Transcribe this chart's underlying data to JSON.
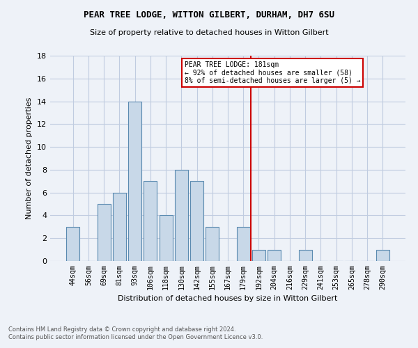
{
  "title1": "PEAR TREE LODGE, WITTON GILBERT, DURHAM, DH7 6SU",
  "title2": "Size of property relative to detached houses in Witton Gilbert",
  "xlabel": "Distribution of detached houses by size in Witton Gilbert",
  "ylabel": "Number of detached properties",
  "footnote1": "Contains HM Land Registry data © Crown copyright and database right 2024.",
  "footnote2": "Contains public sector information licensed under the Open Government Licence v3.0.",
  "bar_labels": [
    "44sqm",
    "56sqm",
    "69sqm",
    "81sqm",
    "93sqm",
    "106sqm",
    "118sqm",
    "130sqm",
    "142sqm",
    "155sqm",
    "167sqm",
    "179sqm",
    "192sqm",
    "204sqm",
    "216sqm",
    "229sqm",
    "241sqm",
    "253sqm",
    "265sqm",
    "278sqm",
    "290sqm"
  ],
  "bar_values": [
    3,
    0,
    5,
    6,
    14,
    7,
    4,
    8,
    7,
    3,
    0,
    3,
    1,
    1,
    0,
    1,
    0,
    0,
    0,
    0,
    1
  ],
  "bar_color": "#c8d8e8",
  "bar_edge_color": "#5a8ab0",
  "annotation_line_x_label": "179sqm",
  "annotation_text": "PEAR TREE LODGE: 181sqm\n← 92% of detached houses are smaller (58)\n8% of semi-detached houses are larger (5) →",
  "annotation_box_edge_color": "#cc0000",
  "vline_color": "#cc0000",
  "grid_color": "#c0cce0",
  "background_color": "#eef2f8",
  "ylim": [
    0,
    18
  ],
  "yticks": [
    0,
    2,
    4,
    6,
    8,
    10,
    12,
    14,
    16,
    18
  ]
}
